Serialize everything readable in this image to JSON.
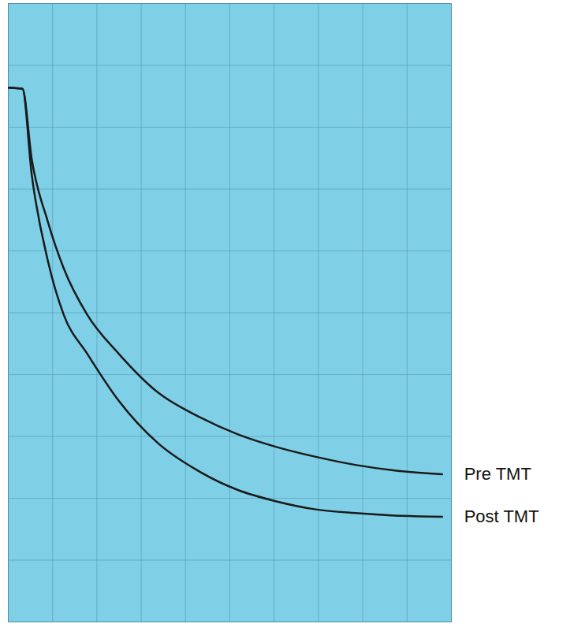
{
  "chart_data": {
    "type": "line",
    "x": [
      0,
      3.2,
      5.3,
      8.9,
      12.5,
      17.8,
      24.9,
      33.8,
      42.7,
      51.6,
      60.5,
      69.4,
      78.3,
      87.2,
      97.9
    ],
    "series": [
      {
        "name": "Pre TMT",
        "color": "#1a1a1a",
        "values": [
          86.4,
          86.2,
          74.8,
          64.8,
          57.2,
          49.7,
          43.4,
          37.1,
          33.3,
          30.4,
          28.3,
          26.7,
          25.4,
          24.5,
          23.9
        ]
      },
      {
        "name": "Post TMT",
        "color": "#1a1a1a",
        "values": [
          86.4,
          86.2,
          72.3,
          58.5,
          49.7,
          43.4,
          35.8,
          28.9,
          24.5,
          21.4,
          19.5,
          18.2,
          17.6,
          17.2,
          17.0
        ]
      }
    ],
    "xlim": [
      0,
      100
    ],
    "ylim": [
      0,
      100
    ],
    "xticks": [
      0,
      10,
      20,
      30,
      40,
      50,
      60,
      70,
      80,
      90,
      100
    ],
    "yticks": [
      0,
      10,
      20,
      30,
      40,
      50,
      60,
      70,
      80,
      90,
      100
    ],
    "grid": true,
    "tick_labels": false,
    "legend": "right"
  }
}
